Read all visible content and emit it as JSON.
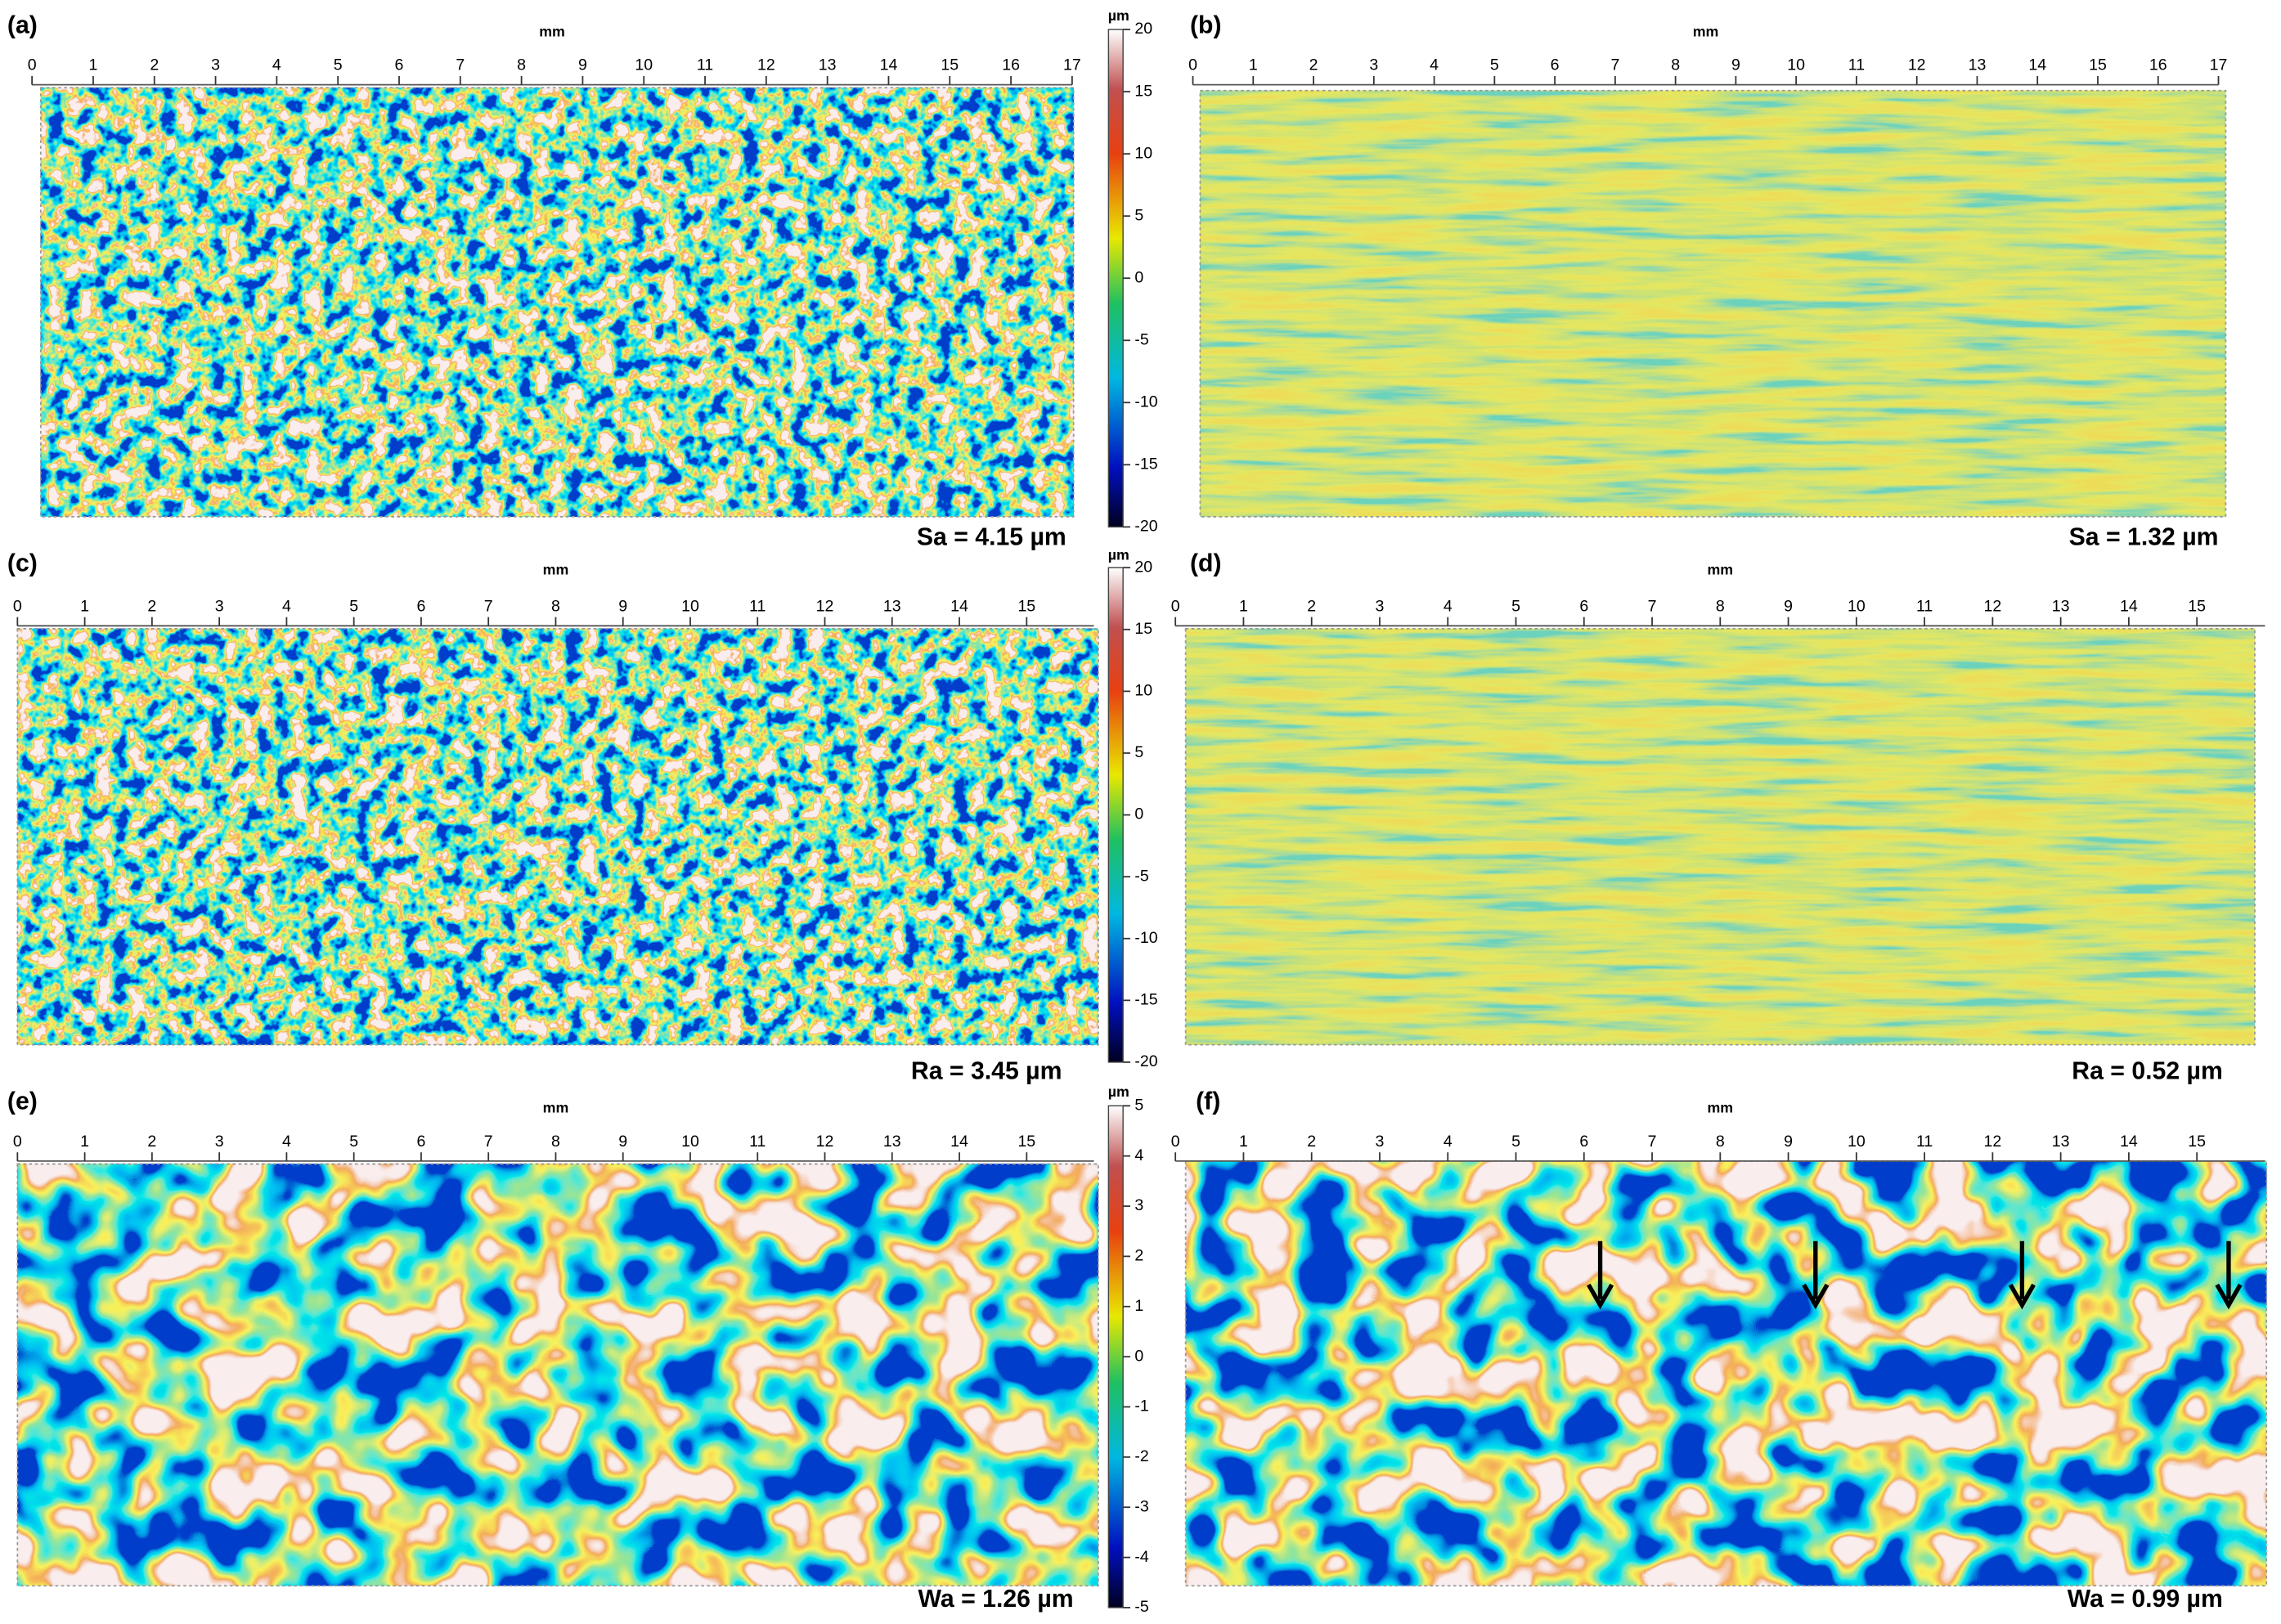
{
  "panels": [
    {
      "label": "(a)",
      "axis_title": "mm",
      "xlim": [
        0,
        17
      ],
      "xticks": [
        0,
        1,
        2,
        3,
        4,
        5,
        6,
        7,
        8,
        9,
        10,
        11,
        12,
        13,
        14,
        15,
        16,
        17
      ],
      "result": "Sa = 4.15  µm"
    },
    {
      "label": "(b)",
      "axis_title": "mm",
      "xlim": [
        0,
        17
      ],
      "xticks": [
        0,
        1,
        2,
        3,
        4,
        5,
        6,
        7,
        8,
        9,
        10,
        11,
        12,
        13,
        14,
        15,
        16,
        17
      ],
      "result": "Sa = 1.32 µm"
    },
    {
      "label": "(c)",
      "axis_title": "mm",
      "xlim": [
        0,
        16
      ],
      "xticks": [
        0,
        1,
        2,
        3,
        4,
        5,
        6,
        7,
        8,
        9,
        10,
        11,
        12,
        13,
        14,
        15
      ],
      "result": "Ra = 3.45 µm"
    },
    {
      "label": "(d)",
      "axis_title": "mm",
      "xlim": [
        0,
        16
      ],
      "xticks": [
        0,
        1,
        2,
        3,
        4,
        5,
        6,
        7,
        8,
        9,
        10,
        11,
        12,
        13,
        14,
        15
      ],
      "result": "Ra = 0.52 µm"
    },
    {
      "label": "(e)",
      "axis_title": "mm",
      "xlim": [
        0,
        16
      ],
      "xticks": [
        0,
        1,
        2,
        3,
        4,
        5,
        6,
        7,
        8,
        9,
        10,
        11,
        12,
        13,
        14,
        15
      ],
      "result": "Wa = 1.26 µm"
    },
    {
      "label": "(f)",
      "axis_title": "mm",
      "xlim": [
        0,
        16
      ],
      "xticks": [
        0,
        1,
        2,
        3,
        4,
        5,
        6,
        7,
        8,
        9,
        10,
        11,
        12,
        13,
        14,
        15
      ],
      "result": "Wa = 0.99 µm"
    }
  ],
  "colorbars": [
    {
      "unit": "µm",
      "lim": [
        -20,
        20
      ],
      "ticks": [
        20,
        15,
        10,
        5,
        0,
        -5,
        -10,
        -15,
        -20
      ]
    },
    {
      "unit": "µm",
      "lim": [
        -20,
        20
      ],
      "ticks": [
        20,
        15,
        10,
        5,
        0,
        -5,
        -10,
        -15,
        -20
      ]
    },
    {
      "unit": "µm",
      "lim": [
        -5,
        5
      ],
      "ticks": [
        5,
        4,
        3,
        2,
        1,
        0,
        -1,
        -2,
        -3,
        -4,
        -5
      ]
    }
  ]
}
